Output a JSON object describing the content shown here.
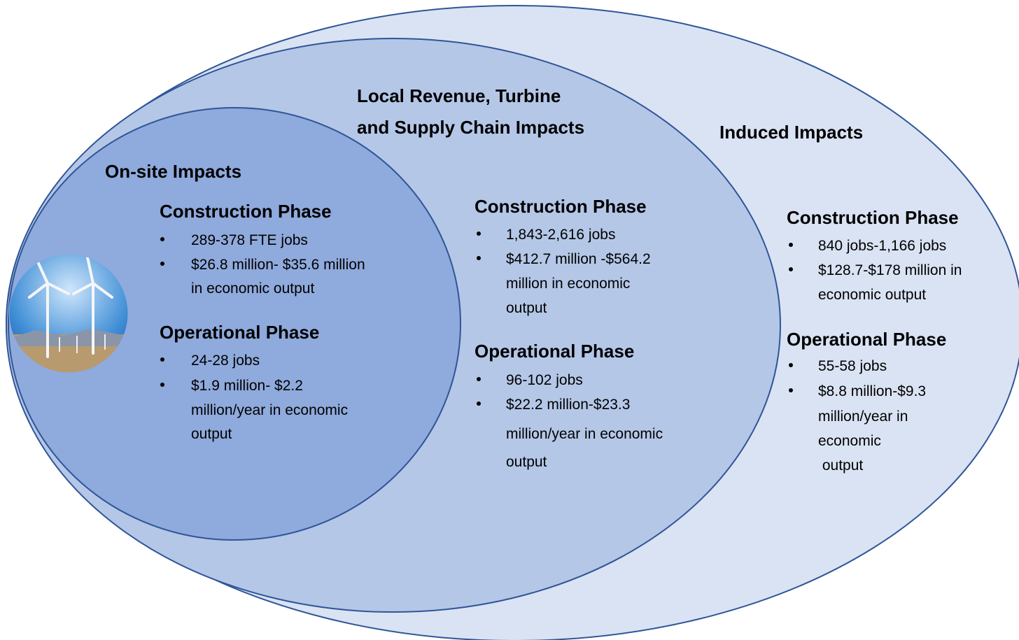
{
  "groups": [
    {
      "title": [
        "On-site Impacts"
      ],
      "phases": [
        {
          "name": "Construction Phase",
          "bullets": [
            [
              "289-378 FTE jobs"
            ],
            [
              "$26.8 million- $35.6 million",
              "in economic output"
            ]
          ]
        },
        {
          "name": "Operational Phase",
          "bullets": [
            [
              "24-28 jobs"
            ],
            [
              "$1.9 million- $2.2",
              "million/year in economic",
              "output"
            ]
          ]
        }
      ]
    },
    {
      "title": [
        "Local Revenue, Turbine",
        "and Supply Chain Impacts"
      ],
      "phases": [
        {
          "name": "Construction Phase",
          "bullets": [
            [
              "1,843-2,616 jobs"
            ],
            [
              "$412.7 million -$564.2",
              "million in economic",
              "output"
            ]
          ]
        },
        {
          "name": "Operational Phase",
          "bullets": [
            [
              "96-102 jobs"
            ],
            [
              "$22.2 million-$23.3",
              "million/year in economic",
              "output"
            ]
          ]
        }
      ]
    },
    {
      "title": [
        "Induced Impacts"
      ],
      "phases": [
        {
          "name": "Construction Phase",
          "bullets": [
            [
              "840 jobs-1,166 jobs"
            ],
            [
              "$128.7-$178 million in",
              "economic output"
            ]
          ]
        },
        {
          "name": "Operational Phase",
          "bullets": [
            [
              "55-58 jobs"
            ],
            [
              "$8.8 million-$9.3",
              "million/year in",
              "economic",
              " output"
            ]
          ]
        }
      ]
    }
  ]
}
